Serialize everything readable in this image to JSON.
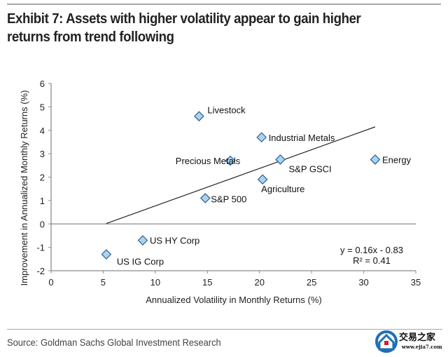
{
  "header": {
    "title_line1": "Exhibit 7: Assets with higher volatility appear to gain higher",
    "title_line2": "returns from trend following"
  },
  "footer": {
    "source": "Source: Goldman Sachs Global Investment Research",
    "watermark_name": "交易之家",
    "watermark_url": "www.ejia7.com"
  },
  "chart_data": {
    "type": "scatter",
    "title": "Exhibit 7: Assets with higher volatility appear to gain higher returns from trend following",
    "xlabel": "Annualized Volatility in Monthly Returns (%)",
    "ylabel": "Improvement in Annualized Monthly Returns (%)",
    "xlim": [
      0,
      35
    ],
    "ylim": [
      -2,
      6
    ],
    "xticks": [
      0,
      5,
      10,
      15,
      20,
      25,
      30,
      35
    ],
    "yticks": [
      -2,
      -1,
      0,
      1,
      2,
      3,
      4,
      5,
      6
    ],
    "grid": false,
    "legend": "none",
    "marker_color": "#a9d3f2",
    "marker_edge_color": "#2f5f86",
    "points": [
      {
        "label": "Livestock",
        "x": 14.2,
        "y": 4.6,
        "label_pos": "right-above"
      },
      {
        "label": "Industrial Metals",
        "x": 20.2,
        "y": 3.7,
        "label_pos": "right"
      },
      {
        "label": "Precious Metals",
        "x": 17.2,
        "y": 2.7,
        "label_pos": "left"
      },
      {
        "label": "S&P GSCI",
        "x": 22.0,
        "y": 2.75,
        "label_pos": "below-right"
      },
      {
        "label": "Energy",
        "x": 31.1,
        "y": 2.75,
        "label_pos": "right"
      },
      {
        "label": "Agriculture",
        "x": 20.3,
        "y": 1.9,
        "label_pos": "below-right"
      },
      {
        "label": "S&P 500",
        "x": 14.8,
        "y": 1.1,
        "label_pos": "right"
      },
      {
        "label": "US HY Corp",
        "x": 8.8,
        "y": -0.7,
        "label_pos": "right"
      },
      {
        "label": "US IG Corp",
        "x": 5.3,
        "y": -1.3,
        "label_pos": "below-right"
      }
    ],
    "trendline": {
      "slope": 0.16,
      "intercept": -0.83,
      "x_range": [
        5.3,
        31.1
      ],
      "equation_text": "y = 0.16x - 0.83",
      "r2_text": "R² = 0.41"
    }
  }
}
